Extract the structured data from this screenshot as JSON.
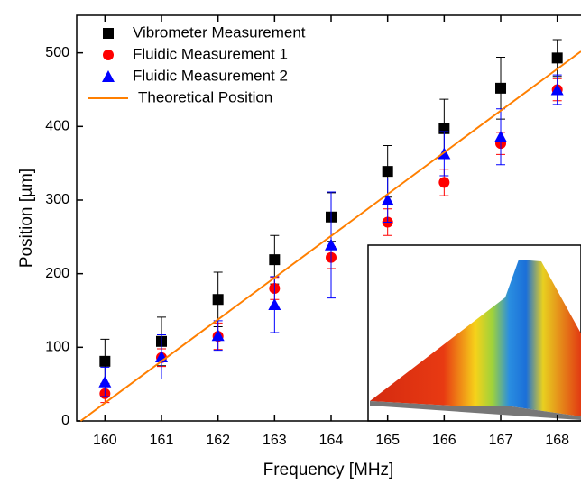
{
  "chart_data": {
    "type": "scatter",
    "x_label": "Frequency [MHz]",
    "y_label": "Position [µm]",
    "xlim": [
      159.5,
      168.42
    ],
    "ylim": [
      0,
      551
    ],
    "xticks": [
      160,
      161,
      162,
      163,
      164,
      165,
      166,
      167,
      168
    ],
    "yticks": [
      0,
      100,
      200,
      300,
      400,
      500
    ],
    "legend": "top-left",
    "x": [
      160,
      161,
      162,
      163,
      164,
      165,
      166,
      167,
      168
    ],
    "series": [
      {
        "name": "Vibrometer Measurement",
        "color": "#000000",
        "marker": "square",
        "values": [
          81,
          108,
          165,
          219,
          277,
          339,
          397,
          452,
          493
        ],
        "errors": [
          30,
          33,
          37,
          33,
          33,
          35,
          40,
          42,
          25
        ]
      },
      {
        "name": "Fluidic Measurement 1",
        "color": "#ff0000",
        "marker": "circle",
        "values": [
          37,
          86,
          115,
          180,
          222,
          270,
          324,
          377,
          450
        ],
        "errors": [
          12,
          12,
          18,
          15,
          15,
          18,
          18,
          15,
          15
        ]
      },
      {
        "name": "Fluidic Measurement 2",
        "color": "#0000ff",
        "marker": "triangle",
        "values": [
          53,
          87,
          116,
          158,
          239,
          300,
          363,
          386,
          450
        ],
        "errors": [
          20,
          30,
          20,
          38,
          72,
          30,
          30,
          38,
          20
        ]
      },
      {
        "name": "Theoretical Position",
        "color": "#ff7f00",
        "marker": "line",
        "x": [
          159.57,
          168.42
        ],
        "values": [
          0,
          502
        ]
      }
    ]
  }
}
